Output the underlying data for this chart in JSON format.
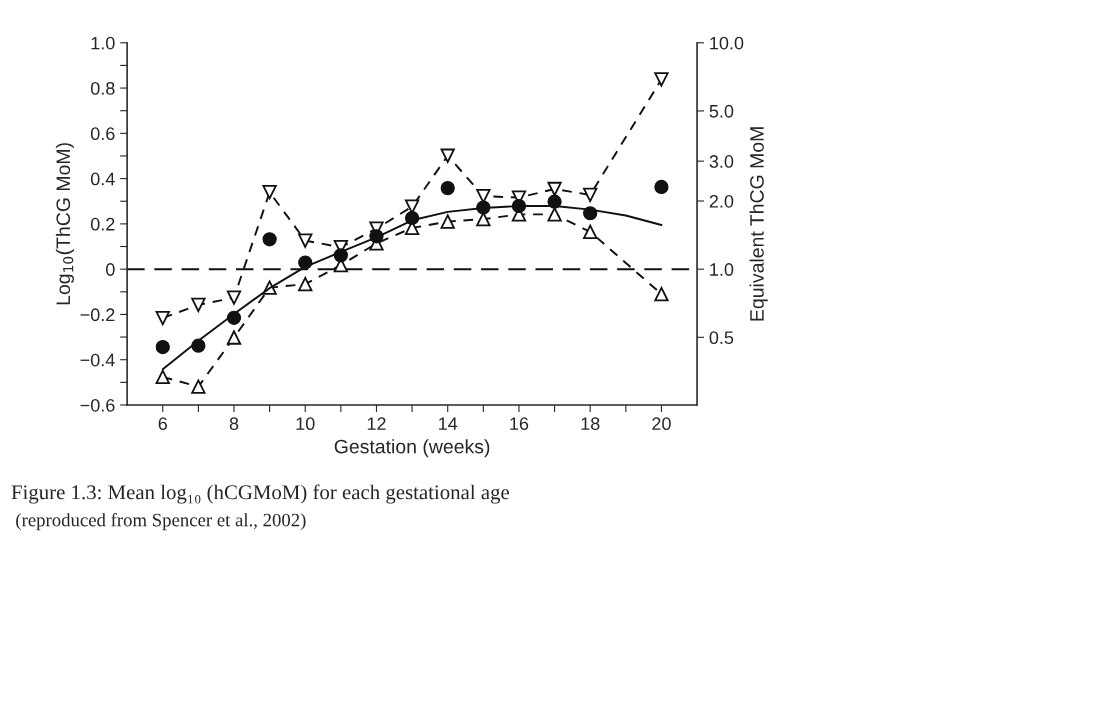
{
  "chart_data": {
    "type": "line",
    "xlabel": "Gestation (weeks)",
    "ylabel": "Log$_{10}$(ThCG MoM)",
    "y2label": "Equivalent ThCG MoM",
    "x": [
      6,
      7,
      8,
      9,
      10,
      11,
      12,
      13,
      14,
      15,
      16,
      17,
      18,
      20
    ],
    "series": [
      {
        "type": "scatter",
        "marker": "circle",
        "color": "#111111",
        "values": [
          -0.344,
          -0.338,
          -0.215,
          0.132,
          0.029,
          0.061,
          0.145,
          0.226,
          0.358,
          0.272,
          0.279,
          0.298,
          0.247,
          0.363
        ]
      },
      {
        "type": "line",
        "marker": "triangle_down",
        "line_style": "dashed",
        "color": "#111111",
        "values": [
          -0.216,
          -0.158,
          -0.126,
          0.34,
          0.126,
          0.097,
          0.179,
          0.276,
          0.501,
          0.323,
          0.316,
          0.354,
          0.328,
          0.838
        ]
      },
      {
        "type": "line",
        "marker": "triangle",
        "line_style": "dashed",
        "color": "#111111",
        "values": [
          -0.476,
          -0.519,
          -0.302,
          -0.082,
          -0.066,
          0.018,
          0.114,
          0.182,
          0.21,
          0.221,
          0.242,
          0.242,
          0.165,
          -0.11
        ]
      },
      {
        "type": "line",
        "marker": "none",
        "line_style": "solid",
        "color": "#111111",
        "x": [
          6,
          7,
          8,
          9,
          10,
          11,
          12,
          13,
          14,
          15,
          16,
          17,
          18,
          19,
          20
        ],
        "values": [
          -0.442,
          -0.316,
          -0.198,
          -0.084,
          0.01,
          0.076,
          0.14,
          0.216,
          0.253,
          0.27,
          0.279,
          0.279,
          0.263,
          0.237,
          0.195
        ]
      }
    ],
    "xlim": [
      5,
      21
    ],
    "xticks": [
      6,
      {
        "value": 7,
        "label": null
      },
      8,
      {
        "value": 9,
        "label": null
      },
      10,
      {
        "value": 11,
        "label": null
      },
      12,
      {
        "value": 13,
        "label": null
      },
      14,
      {
        "value": 15,
        "label": null
      },
      16,
      {
        "value": 17,
        "label": null
      },
      18,
      {
        "value": 19,
        "label": null
      },
      20
    ],
    "ylim": [
      -0.6,
      1.0
    ],
    "yticks": [
      {
        "value": -0.6,
        "label": "−0.6"
      },
      {
        "value": -0.5,
        "label": null
      },
      {
        "value": -0.4,
        "label": "−0.4"
      },
      {
        "value": -0.3,
        "label": null
      },
      {
        "value": -0.2,
        "label": "−0.2"
      },
      {
        "value": -0.1,
        "label": null
      },
      0,
      {
        "value": 0.1,
        "label": null
      },
      {
        "value": 0.2,
        "label": "0.2"
      },
      {
        "value": 0.3,
        "label": null
      },
      {
        "value": 0.4,
        "label": "0.4"
      },
      {
        "value": 0.5,
        "label": null
      },
      {
        "value": 0.6,
        "label": "0.6"
      },
      {
        "value": 0.7,
        "label": null
      },
      {
        "value": 0.8,
        "label": "0.8"
      },
      {
        "value": 0.9,
        "label": null
      },
      {
        "value": 1.0,
        "label": "1.0"
      }
    ],
    "log": "y2",
    "y2lim": [
      0.2512,
      10
    ],
    "y2ticks": [
      {
        "value": 0.5,
        "label": "0.5"
      },
      {
        "value": 1,
        "label": "1.0"
      },
      {
        "value": 2,
        "label": "2.0"
      },
      {
        "value": 3,
        "label": "3.0"
      },
      {
        "value": 5,
        "label": "5.0"
      },
      {
        "value": 10,
        "label": "10.0"
      }
    ],
    "ref_lines": [
      {
        "axis": "y",
        "value": 0,
        "color": "#111111",
        "line_style": "dashed"
      }
    ],
    "grid": false,
    "legend": false,
    "annotations": [
      "Figure 1.3: Mean log₁₀ (hCGMoM) for each gestational age",
      "(reproduced from Spencer et al., 2002)"
    ]
  }
}
